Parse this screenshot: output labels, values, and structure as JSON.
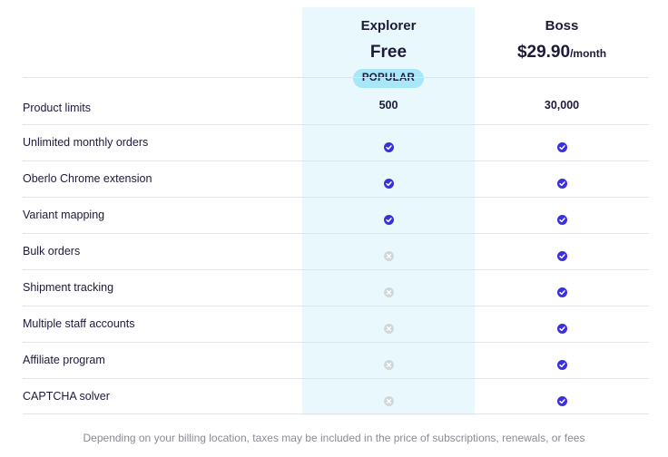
{
  "plans": [
    {
      "name": "Explorer",
      "price": "Free",
      "unit": "",
      "badge": "POPULAR"
    },
    {
      "name": "Boss",
      "price": "$29.90",
      "unit": "/month",
      "badge": ""
    }
  ],
  "colors": {
    "accent": "#3b2fe0",
    "highlight": "#e8f8fd",
    "badge": "#a7e7f8",
    "unavailable": "#d4d4dc"
  },
  "rows": [
    {
      "feature": "Product limits",
      "explorer": "500",
      "boss": "30,000"
    },
    {
      "feature": "Unlimited monthly orders",
      "explorer": "check-icon",
      "boss": "check-icon"
    },
    {
      "feature": "Oberlo Chrome extension",
      "explorer": "check-icon",
      "boss": "check-icon"
    },
    {
      "feature": "Variant mapping",
      "explorer": "check-icon",
      "boss": "check-icon"
    },
    {
      "feature": "Bulk orders",
      "explorer": "cross-icon",
      "boss": "check-icon"
    },
    {
      "feature": "Shipment tracking",
      "explorer": "cross-icon",
      "boss": "check-icon"
    },
    {
      "feature": "Multiple staff accounts",
      "explorer": "cross-icon",
      "boss": "check-icon"
    },
    {
      "feature": "Affiliate program",
      "explorer": "cross-icon",
      "boss": "check-icon"
    },
    {
      "feature": "CAPTCHA solver",
      "explorer": "cross-icon",
      "boss": "check-icon"
    }
  ],
  "footnote": "Depending on your billing location, taxes may be included in the price of subscriptions, renewals, or fees"
}
